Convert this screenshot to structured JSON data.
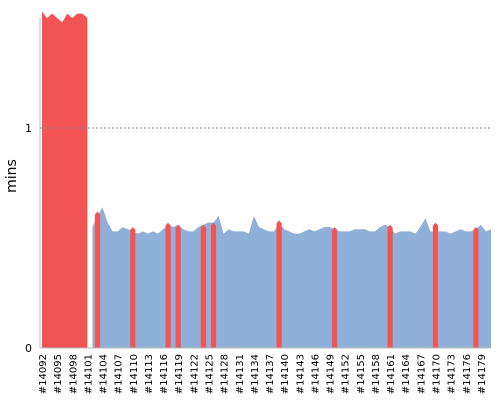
{
  "chart_data": {
    "type": "area",
    "title": "",
    "xlabel": "",
    "ylabel": "mins",
    "ylim": [
      0,
      1.5
    ],
    "y_ticks": [
      0,
      1
    ],
    "reference_line": {
      "y": 1,
      "style": "dotted"
    },
    "x_tick_labels": [
      "#14092",
      "#14095",
      "#14098",
      "#14101",
      "#14104",
      "#14107",
      "#14110",
      "#14113",
      "#14116",
      "#14119",
      "#14122",
      "#14125",
      "#14128",
      "#14131",
      "#14134",
      "#14137",
      "#14140",
      "#14143",
      "#14146",
      "#14149",
      "#14152",
      "#14155",
      "#14158",
      "#14161",
      "#14164",
      "#14167",
      "#14170",
      "#14173",
      "#14176",
      "#14179"
    ],
    "x_start_build": 14092,
    "x_end_build": 14181,
    "series": [
      {
        "color": "#8fb1d9",
        "builds": [
          14102,
          14103,
          14104,
          14105,
          14106,
          14107,
          14108,
          14109,
          14110,
          14111,
          14112,
          14113,
          14114,
          14115,
          14116,
          14117,
          14118,
          14119,
          14120,
          14121,
          14122,
          14123,
          14124,
          14125,
          14126,
          14127,
          14128,
          14129,
          14130,
          14131,
          14132,
          14133,
          14134,
          14135,
          14136,
          14137,
          14138,
          14139,
          14140,
          14141,
          14142,
          14143,
          14144,
          14145,
          14146,
          14147,
          14148,
          14149,
          14150,
          14151,
          14152,
          14153,
          14154,
          14155,
          14156,
          14157,
          14158,
          14159,
          14160,
          14161,
          14162,
          14163,
          14164,
          14165,
          14166,
          14167,
          14168,
          14169,
          14170,
          14171,
          14172,
          14173,
          14174,
          14175,
          14176,
          14177,
          14178,
          14179,
          14180,
          14181
        ],
        "values": [
          0.55,
          0.6,
          0.64,
          0.57,
          0.53,
          0.53,
          0.55,
          0.54,
          0.53,
          0.52,
          0.53,
          0.52,
          0.53,
          0.52,
          0.54,
          0.56,
          0.55,
          0.56,
          0.54,
          0.53,
          0.53,
          0.55,
          0.56,
          0.57,
          0.57,
          0.6,
          0.52,
          0.54,
          0.53,
          0.53,
          0.53,
          0.52,
          0.6,
          0.55,
          0.54,
          0.53,
          0.53,
          0.57,
          0.54,
          0.53,
          0.52,
          0.52,
          0.53,
          0.54,
          0.53,
          0.54,
          0.55,
          0.55,
          0.54,
          0.53,
          0.53,
          0.53,
          0.54,
          0.54,
          0.54,
          0.53,
          0.53,
          0.55,
          0.56,
          0.55,
          0.52,
          0.53,
          0.53,
          0.53,
          0.52,
          0.55,
          0.59,
          0.53,
          0.53,
          0.53,
          0.53,
          0.52,
          0.53,
          0.54,
          0.53,
          0.53,
          0.54,
          0.56,
          0.53,
          0.54
        ]
      },
      {
        "color": "#f25454",
        "builds": [
          14092,
          14093,
          14094,
          14095,
          14096,
          14097,
          14098,
          14099,
          14100,
          14101
        ],
        "values": [
          1.53,
          1.5,
          1.52,
          1.5,
          1.48,
          1.52,
          1.5,
          1.52,
          1.52,
          1.5
        ]
      }
    ],
    "failure_spikes": [
      {
        "build": 14103,
        "value": 0.62
      },
      {
        "build": 14110,
        "value": 0.55
      },
      {
        "build": 14117,
        "value": 0.57
      },
      {
        "build": 14119,
        "value": 0.56
      },
      {
        "build": 14124,
        "value": 0.56
      },
      {
        "build": 14126,
        "value": 0.57
      },
      {
        "build": 14139,
        "value": 0.58
      },
      {
        "build": 14150,
        "value": 0.55
      },
      {
        "build": 14161,
        "value": 0.56
      },
      {
        "build": 14170,
        "value": 0.57
      },
      {
        "build": 14178,
        "value": 0.55
      }
    ],
    "grid": false,
    "legend": "none"
  }
}
